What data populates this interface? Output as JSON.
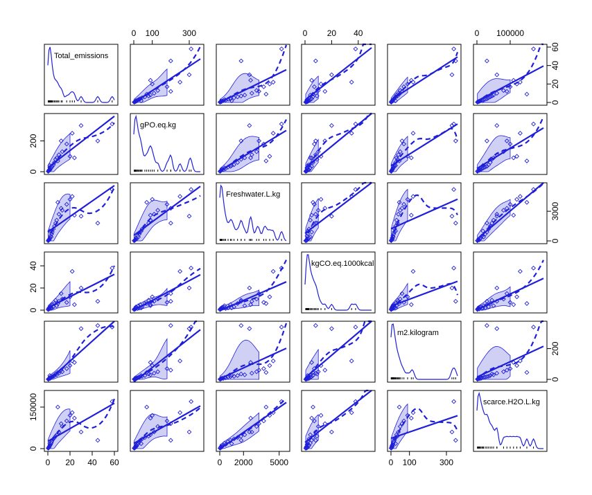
{
  "chart_data": {
    "type": "scatter",
    "title": "",
    "matrix_type": "scatterplot matrix",
    "variables": [
      "Total_emissions",
      "gPO.eq.kg",
      "Freshwater.L.kg",
      "kgCO.eq.1000kcal",
      "m2.kilogram",
      "scarce.H2O.L.kg"
    ],
    "ranges": [
      [
        0,
        60
      ],
      [
        0,
        360
      ],
      [
        0,
        5600
      ],
      [
        0,
        50
      ],
      [
        0,
        360
      ],
      [
        0,
        200000
      ]
    ],
    "tick_labels": {
      "bottom": [
        {
          "col": 0,
          "labels": [
            "0",
            "20",
            "40",
            "60"
          ],
          "values": [
            0,
            20,
            40,
            60
          ]
        },
        {
          "col": 2,
          "labels": [
            "0",
            "2000",
            "5000"
          ],
          "values": [
            0,
            2000,
            5000
          ]
        },
        {
          "col": 4,
          "labels": [
            "0",
            "100",
            "300"
          ],
          "values": [
            0,
            100,
            300
          ]
        }
      ],
      "top": [
        {
          "col": 1,
          "labels": [
            "0",
            "100",
            "300"
          ],
          "values": [
            0,
            100,
            300
          ]
        },
        {
          "col": 3,
          "labels": [
            "0",
            "20",
            "40"
          ],
          "values": [
            0,
            20,
            40
          ]
        },
        {
          "col": 5,
          "labels": [
            "0",
            "100000"
          ],
          "values": [
            0,
            100000
          ]
        }
      ],
      "left": [
        {
          "row": 1,
          "labels": [
            "0",
            "200"
          ],
          "values": [
            0,
            200
          ]
        },
        {
          "row": 3,
          "labels": [
            "0",
            "20",
            "40"
          ],
          "values": [
            0,
            20,
            40
          ]
        },
        {
          "row": 5,
          "labels": [
            "0",
            "150000"
          ],
          "values": [
            0,
            150000
          ]
        }
      ],
      "right": [
        {
          "row": 0,
          "labels": [
            "0",
            "20",
            "40",
            "60"
          ],
          "values": [
            0,
            20,
            40,
            60
          ]
        },
        {
          "row": 2,
          "labels": [
            "0",
            "3000"
          ],
          "values": [
            0,
            3000
          ]
        },
        {
          "row": 4,
          "labels": [
            "0",
            "200"
          ],
          "values": [
            0,
            200
          ]
        }
      ]
    },
    "observations": [
      [
        0.5,
        3,
        40,
        1.0,
        2,
        2000
      ],
      [
        0.8,
        6,
        80,
        1.5,
        3,
        3000
      ],
      [
        1.0,
        10,
        150,
        2.0,
        5,
        5000
      ],
      [
        1.2,
        8,
        100,
        1.0,
        4,
        7000
      ],
      [
        1.5,
        15,
        200,
        2.5,
        8,
        9000
      ],
      [
        2.0,
        12,
        300,
        3.0,
        6,
        12000
      ],
      [
        2.5,
        20,
        500,
        1.5,
        10,
        15000
      ],
      [
        3.0,
        25,
        400,
        4.0,
        12,
        20000
      ],
      [
        3.5,
        30,
        700,
        2.0,
        15,
        25000
      ],
      [
        4.0,
        35,
        900,
        5.0,
        18,
        30000
      ],
      [
        5.0,
        45,
        1200,
        3.0,
        20,
        35000
      ],
      [
        6.0,
        60,
        1500,
        6.0,
        25,
        40000
      ],
      [
        8.0,
        90,
        2100,
        4.0,
        30,
        50000
      ],
      [
        10.0,
        110,
        2700,
        8.0,
        40,
        60000
      ],
      [
        13.0,
        130,
        3100,
        10.0,
        50,
        80000
      ],
      [
        17.0,
        180,
        3700,
        7.0,
        70,
        100000
      ],
      [
        20.0,
        100,
        4200,
        12.0,
        90,
        120000
      ],
      [
        22.0,
        250,
        4500,
        35.0,
        120,
        130000
      ],
      [
        24.0,
        90,
        2600,
        5.0,
        110,
        110000
      ],
      [
        0.3,
        2,
        20,
        0.5,
        1,
        1500
      ],
      [
        1.8,
        40,
        1000,
        2.0,
        25,
        18000
      ],
      [
        7.0,
        80,
        1800,
        9.0,
        35,
        45000
      ],
      [
        12.0,
        200,
        3300,
        15.0,
        60,
        90000
      ],
      [
        9.0,
        70,
        3900,
        6.0,
        45,
        150000
      ],
      [
        30.0,
        300,
        2500,
        20.0,
        330,
        60000
      ],
      [
        45.0,
        200,
        1800,
        8.0,
        350,
        30000
      ],
      [
        58.0,
        310,
        5200,
        38.0,
        340,
        170000
      ]
    ]
  }
}
